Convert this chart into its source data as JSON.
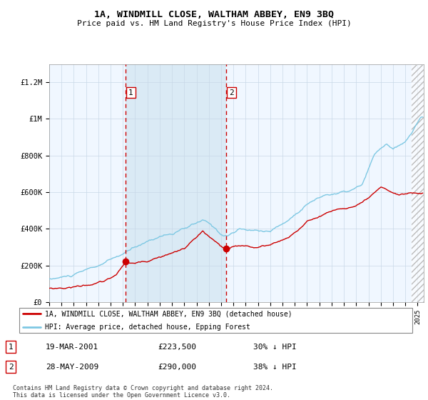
{
  "title": "1A, WINDMILL CLOSE, WALTHAM ABBEY, EN9 3BQ",
  "subtitle": "Price paid vs. HM Land Registry's House Price Index (HPI)",
  "legend_line1": "1A, WINDMILL CLOSE, WALTHAM ABBEY, EN9 3BQ (detached house)",
  "legend_line2": "HPI: Average price, detached house, Epping Forest",
  "footnote": "Contains HM Land Registry data © Crown copyright and database right 2024.\nThis data is licensed under the Open Government Licence v3.0.",
  "transaction1_label": "1",
  "transaction1_date": "19-MAR-2001",
  "transaction1_price": "£223,500",
  "transaction1_hpi": "30% ↓ HPI",
  "transaction1_year": 2001.21,
  "transaction1_value": 223500,
  "transaction2_label": "2",
  "transaction2_date": "28-MAY-2009",
  "transaction2_price": "£290,000",
  "transaction2_hpi": "38% ↓ HPI",
  "transaction2_year": 2009.4,
  "transaction2_value": 290000,
  "hpi_color": "#7ec8e3",
  "price_color": "#cc0000",
  "vline_color": "#cc0000",
  "highlight_color": "#daeaf5",
  "background_color": "#f0f7ff",
  "ylim": [
    0,
    1300000
  ],
  "yticks": [
    0,
    200000,
    400000,
    600000,
    800000,
    1000000,
    1200000
  ],
  "ytick_labels": [
    "£0",
    "£200K",
    "£400K",
    "£600K",
    "£800K",
    "£1M",
    "£1.2M"
  ],
  "xstart": 1995.0,
  "xend": 2025.5
}
